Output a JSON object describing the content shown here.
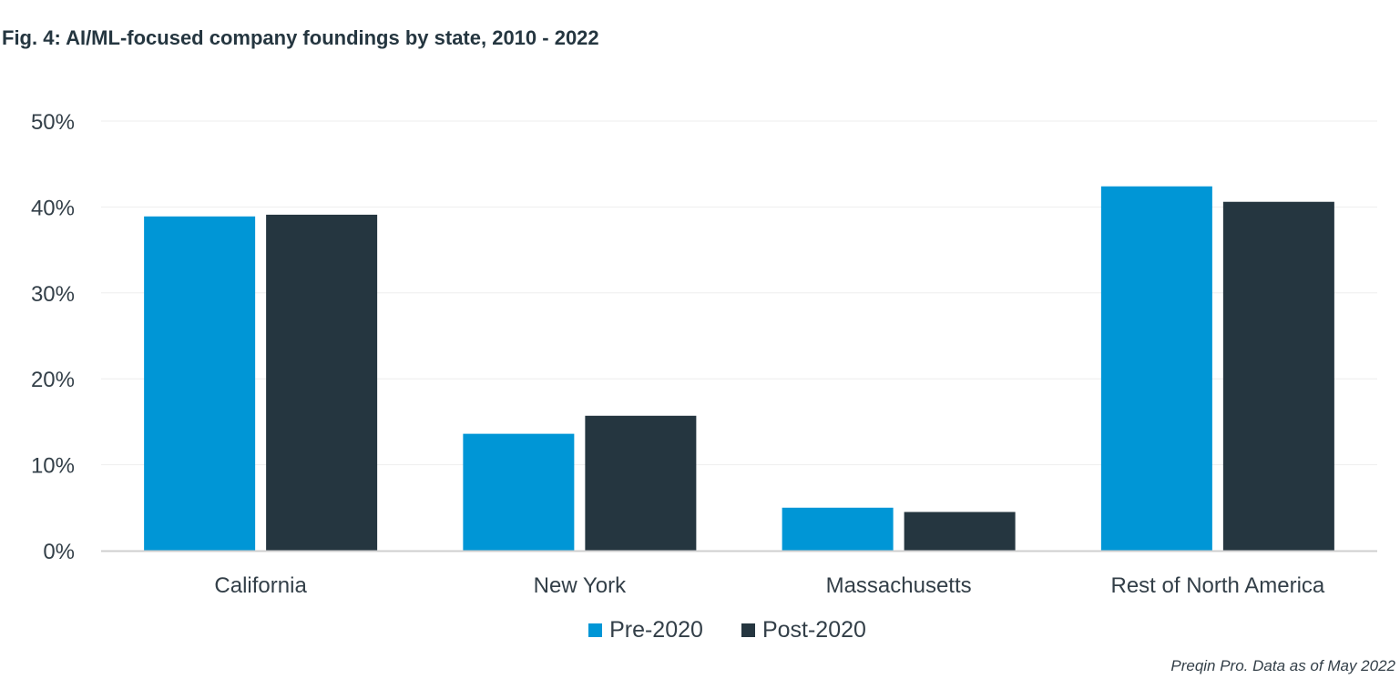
{
  "title": "Fig. 4: AI/ML-focused company foundings by state, 2010 - 2022",
  "source": "Preqin Pro. Data as of May 2022",
  "colors": {
    "pre": "#0096d6",
    "post": "#253640",
    "grid": "#eeeeee",
    "axis": "#cfcfcf"
  },
  "legend": {
    "pre_label": "Pre-2020",
    "post_label": "Post-2020"
  },
  "chart_data": {
    "type": "bar",
    "title": "Fig. 4: AI/ML-focused company foundings by state, 2010 - 2022",
    "categories": [
      "California",
      "New York",
      "Massachusetts",
      "Rest of North America"
    ],
    "series": [
      {
        "name": "Pre-2020",
        "values": [
          38.9,
          13.6,
          5.0,
          42.4
        ]
      },
      {
        "name": "Post-2020",
        "values": [
          39.1,
          15.7,
          4.5,
          40.6
        ]
      }
    ],
    "yticks": [
      "0%",
      "10%",
      "20%",
      "30%",
      "40%",
      "50%"
    ],
    "ylim": [
      0,
      50
    ],
    "xlabel": "",
    "ylabel": "",
    "grid": true,
    "legend_position": "bottom"
  }
}
